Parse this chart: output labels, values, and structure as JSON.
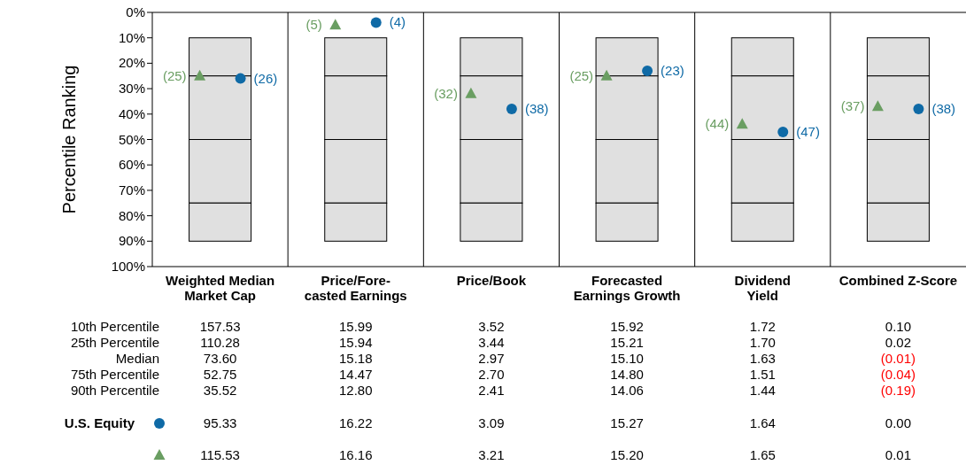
{
  "chart_data": [
    {
      "type": "bar",
      "ylabel": "Percentile Ranking",
      "categories": [
        "Weighted Median\nMarket Cap",
        "Price/Fore-\ncasted Earnings",
        "Price/Book",
        "Forecasted\nEarnings Growth",
        "Dividend\nYield",
        "Combined Z-Score"
      ],
      "series": [
        {
          "color": "#e0e0e0",
          "base": [
            10,
            10,
            10,
            10,
            10,
            10
          ],
          "values": [
            15,
            15,
            15,
            15,
            15,
            15
          ]
        },
        {
          "color": "#e0e0e0",
          "base": [
            25,
            25,
            25,
            25,
            25,
            25
          ],
          "values": [
            25,
            25,
            25,
            25,
            25,
            25
          ]
        },
        {
          "color": "#e0e0e0",
          "base": [
            50,
            50,
            50,
            50,
            50,
            50
          ],
          "values": [
            25,
            25,
            25,
            25,
            25,
            25
          ]
        },
        {
          "color": "#e0e0e0",
          "base": [
            75,
            75,
            75,
            75,
            75,
            75
          ],
          "values": [
            15,
            15,
            15,
            15,
            15,
            15
          ]
        },
        {
          "type": "scatter",
          "name": "U.S. Equity",
          "color": "#0f6aa6",
          "marker": "circle",
          "x": [
            "Weighted Median\nMarket Cap",
            "Price/Fore-\ncasted Earnings",
            "Price/Book",
            "Forecasted\nEarnings Growth",
            "Dividend\nYield",
            "Combined Z-Score"
          ],
          "values": [
            26,
            4,
            38,
            23,
            47,
            38
          ],
          "value_labels": [
            "(26)",
            "(4)",
            "(38)",
            "(23)",
            "(47)",
            "(38)"
          ]
        },
        {
          "type": "scatter",
          "color": "#6a9e62",
          "marker": "triangle",
          "x": [
            "Weighted Median\nMarket Cap",
            "Price/Fore-\ncasted Earnings",
            "Price/Book",
            "Forecasted\nEarnings Growth",
            "Dividend\nYield",
            "Combined Z-Score"
          ],
          "values": [
            25,
            5,
            32,
            25,
            44,
            37
          ],
          "value_labels": [
            "(25)",
            "(5)",
            "(32)",
            "(25)",
            "(44)",
            "(37)"
          ]
        }
      ],
      "ylim": [
        100,
        0
      ],
      "yticks": [
        {
          "value": 0,
          "label": "0%"
        },
        {
          "value": 10,
          "label": "10%"
        },
        {
          "value": 20,
          "label": "20%"
        },
        {
          "value": 30,
          "label": "30%"
        },
        {
          "value": 40,
          "label": "40%"
        },
        {
          "value": 50,
          "label": "50%"
        },
        {
          "value": 60,
          "label": "60%"
        },
        {
          "value": 70,
          "label": "70%"
        },
        {
          "value": 80,
          "label": "80%"
        },
        {
          "value": 90,
          "label": "90%"
        },
        {
          "value": 100,
          "label": "100%"
        }
      ],
      "grid": false
    },
    {
      "type": "other",
      "y_categories": [
        "10th Percentile",
        "25th Percentile",
        "Median",
        "75th Percentile",
        "90th Percentile"
      ],
      "cell_labels": [
        [
          "157.53",
          "15.99",
          "3.52",
          "15.92",
          "1.72",
          "0.10"
        ],
        [
          "110.28",
          "15.94",
          "3.44",
          "15.21",
          "1.70",
          "0.02"
        ],
        [
          "73.60",
          "15.18",
          "2.97",
          "15.10",
          "1.63",
          "(0.01)"
        ],
        [
          "52.75",
          "14.47",
          "2.70",
          "14.80",
          "1.51",
          "(0.04)"
        ],
        [
          "35.52",
          "12.80",
          "2.41",
          "14.06",
          "1.44",
          "(0.19)"
        ],
        [
          "95.33",
          "16.22",
          "3.09",
          "15.27",
          "1.64",
          "0.00"
        ],
        [
          "115.53",
          "16.16",
          "3.21",
          "15.20",
          "1.65",
          "0.01"
        ]
      ],
      "colors": [
        [
          "#000000",
          "#000000",
          "#000000",
          "#000000",
          "#000000",
          "#000000"
        ],
        [
          "#000000",
          "#000000",
          "#000000",
          "#000000",
          "#000000",
          "#000000"
        ],
        [
          "#000000",
          "#000000",
          "#000000",
          "#000000",
          "#000000",
          "#ff0000"
        ],
        [
          "#000000",
          "#000000",
          "#000000",
          "#000000",
          "#000000",
          "#ff0000"
        ],
        [
          "#000000",
          "#000000",
          "#000000",
          "#000000",
          "#000000",
          "#ff0000"
        ],
        [
          "#000000",
          "#000000",
          "#000000",
          "#000000",
          "#000000",
          "#000000"
        ],
        [
          "#000000",
          "#000000",
          "#000000",
          "#000000",
          "#000000",
          "#000000"
        ]
      ]
    }
  ]
}
